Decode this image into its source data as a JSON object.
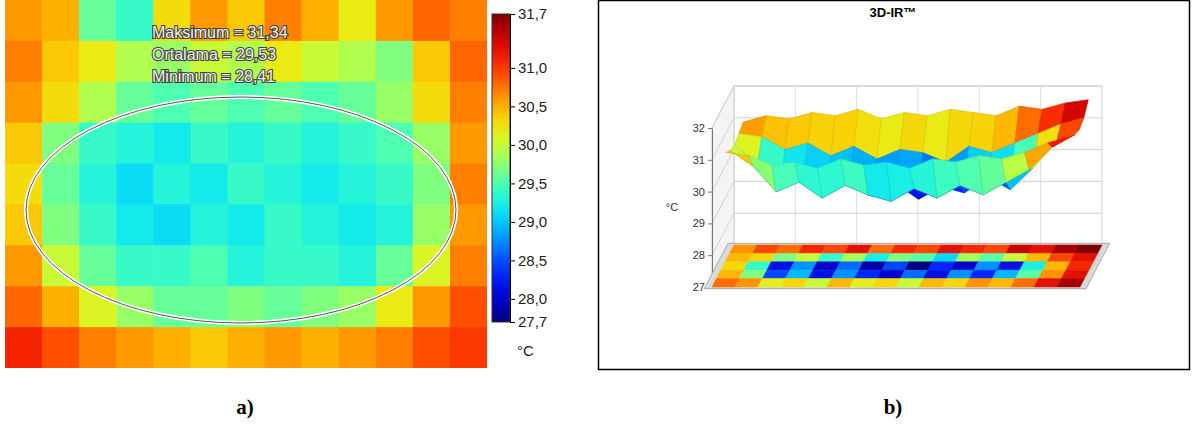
{
  "chart_data": [
    {
      "type": "heatmap",
      "label": "a)",
      "annotations": [
        "Maksimum = 31,34",
        "Ortalama = 29,53",
        "Minimum = 28,41"
      ],
      "cells": [
        [
          30.6,
          30.5,
          29.6,
          29.4,
          30.3,
          30.6,
          30.4,
          30.7,
          30.5,
          30.2,
          30.6,
          30.8,
          30.7
        ],
        [
          30.7,
          30.4,
          30.2,
          29.9,
          29.8,
          30.0,
          29.9,
          30.2,
          30.0,
          29.9,
          29.7,
          30.4,
          30.8
        ],
        [
          30.6,
          30.3,
          29.9,
          29.6,
          29.5,
          29.6,
          29.5,
          29.6,
          29.5,
          29.6,
          29.8,
          30.3,
          30.7
        ],
        [
          30.4,
          29.7,
          29.4,
          29.3,
          29.2,
          29.4,
          29.3,
          29.4,
          29.3,
          29.4,
          29.5,
          29.8,
          30.6
        ],
        [
          30.3,
          29.6,
          29.3,
          29.1,
          29.3,
          29.2,
          29.4,
          29.3,
          29.2,
          29.3,
          29.4,
          29.7,
          30.7
        ],
        [
          30.4,
          29.7,
          29.4,
          29.2,
          29.1,
          29.3,
          29.2,
          29.4,
          29.3,
          29.2,
          29.3,
          29.8,
          30.6
        ],
        [
          30.6,
          30.0,
          29.6,
          29.4,
          29.4,
          29.5,
          29.3,
          29.4,
          29.4,
          29.3,
          29.6,
          30.1,
          30.7
        ],
        [
          30.8,
          30.5,
          30.1,
          29.8,
          29.6,
          29.6,
          29.7,
          29.6,
          29.7,
          29.8,
          30.2,
          30.6,
          30.9
        ],
        [
          31.1,
          30.9,
          30.7,
          30.6,
          30.5,
          30.4,
          30.5,
          30.6,
          30.5,
          30.6,
          30.7,
          30.9,
          31.0
        ]
      ],
      "colorbar": {
        "lim": [
          27.7,
          31.7
        ],
        "label": "°C",
        "ticks": [
          {
            "value": 31.7,
            "label": "31,7"
          },
          {
            "value": 31.0,
            "label": "31,0"
          },
          {
            "value": 30.5,
            "label": "30,5"
          },
          {
            "value": 30.0,
            "label": "30,0"
          },
          {
            "value": 29.5,
            "label": "29,5"
          },
          {
            "value": 29.0,
            "label": "29,0"
          },
          {
            "value": 28.5,
            "label": "28,5"
          },
          {
            "value": 28.0,
            "label": "28,0"
          },
          {
            "value": 27.7,
            "label": "27,7"
          }
        ]
      }
    },
    {
      "type": "surface",
      "label": "b)",
      "title": "3D-IR™",
      "zlabel": "°C",
      "zlim": [
        27,
        32
      ],
      "zticks": [
        27,
        28,
        29,
        30,
        31,
        32
      ],
      "cells": [
        [
          31.0,
          31.2,
          31.1,
          31.3,
          31.2,
          31.4,
          31.1,
          31.3,
          31.2,
          31.4,
          31.3,
          31.2,
          31.5,
          31.4,
          31.6,
          31.7
        ],
        [
          30.9,
          30.8,
          30.4,
          30.6,
          30.2,
          30.5,
          30.1,
          30.4,
          30.3,
          30.0,
          30.5,
          30.3,
          30.6,
          30.9,
          31.2,
          31.4
        ],
        [
          30.8,
          30.2,
          29.4,
          29.8,
          29.3,
          29.7,
          29.2,
          29.6,
          29.1,
          29.5,
          29.3,
          29.8,
          29.4,
          30.1,
          30.9,
          31.3
        ],
        [
          30.9,
          30.4,
          29.6,
          29.9,
          29.4,
          29.8,
          29.5,
          29.3,
          29.7,
          29.4,
          29.8,
          29.5,
          29.9,
          30.3,
          31.0,
          31.4
        ],
        [
          31.1,
          31.0,
          30.7,
          30.8,
          30.6,
          30.9,
          30.7,
          30.8,
          30.6,
          30.9,
          30.8,
          31.0,
          30.9,
          31.1,
          31.4,
          31.6
        ]
      ]
    }
  ]
}
